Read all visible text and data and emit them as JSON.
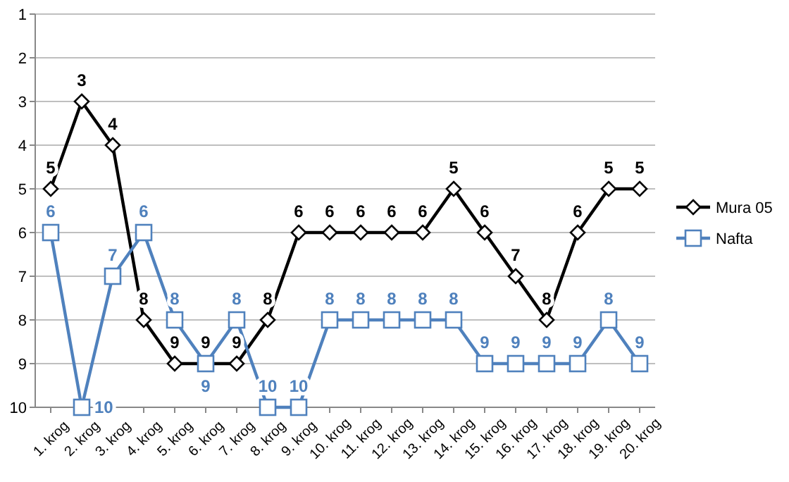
{
  "chart_data": {
    "type": "line",
    "categories": [
      "1. krog",
      "2. krog",
      "3. krog",
      "4. krog",
      "5. krog",
      "6. krog",
      "7. krog",
      "8. krog",
      "9. krog",
      "10. krog",
      "11. krog",
      "12. krog",
      "13. krog",
      "14. krog",
      "15. krog",
      "16. krog",
      "17. krog",
      "18. krog",
      "19. krog",
      "20. krog"
    ],
    "series": [
      {
        "name": "Mura 05",
        "color": "#000000",
        "marker": "diamond",
        "values": [
          5,
          3,
          4,
          8,
          9,
          9,
          9,
          8,
          6,
          6,
          6,
          6,
          6,
          5,
          6,
          7,
          8,
          6,
          5,
          5
        ]
      },
      {
        "name": "Nafta",
        "color": "#4f81bd",
        "marker": "square",
        "values": [
          6,
          10,
          7,
          6,
          8,
          9,
          8,
          10,
          10,
          8,
          8,
          8,
          8,
          8,
          9,
          9,
          9,
          9,
          8,
          9
        ]
      }
    ],
    "ylim": [
      10,
      1
    ],
    "yticks": [
      1,
      2,
      3,
      4,
      5,
      6,
      7,
      8,
      9,
      10
    ],
    "grid": "y",
    "legend": "right",
    "data_labels": true
  }
}
